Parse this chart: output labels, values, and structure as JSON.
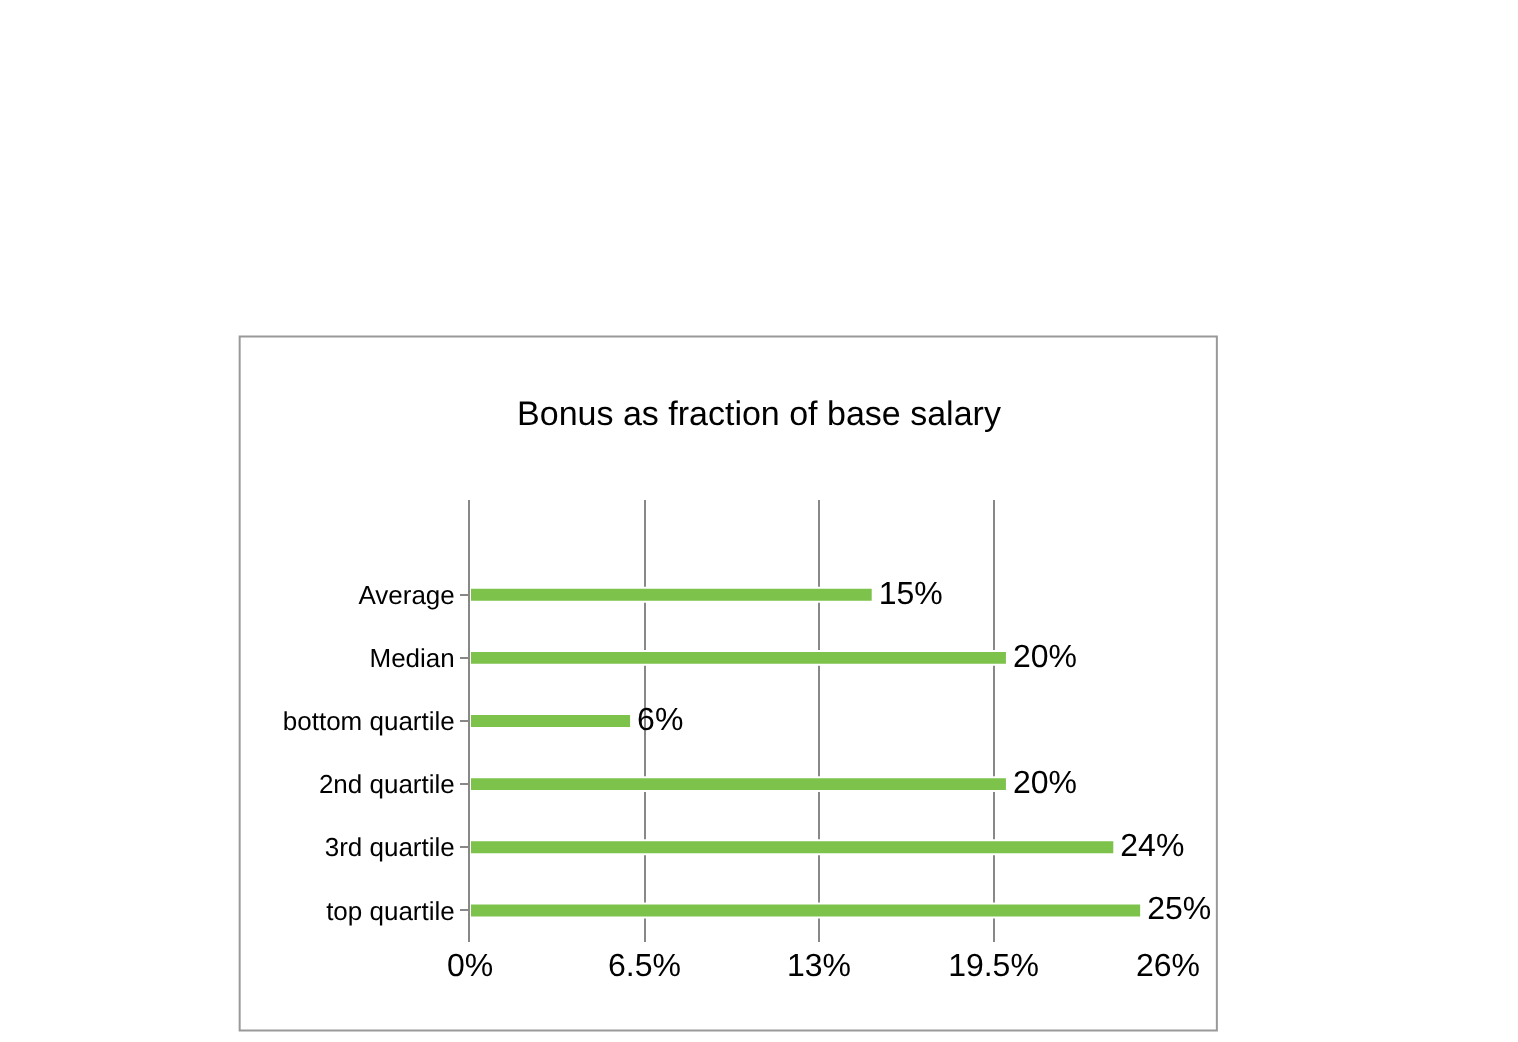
{
  "chart_data": {
    "type": "bar",
    "orientation": "horizontal",
    "title": "Bonus as fraction of base salary",
    "categories": [
      null,
      "Average",
      "Median",
      "bottom quartile",
      "2nd quartile",
      "3rd quartile",
      "top quartile"
    ],
    "series": [
      {
        "color": "#7dc24b",
        "values": [
          null,
          15,
          20,
          6,
          20,
          24,
          25
        ],
        "value_labels": [
          null,
          "15%",
          "20%",
          "6%",
          "20%",
          "24%",
          "25%"
        ]
      }
    ],
    "xlim": [
      0,
      26
    ],
    "xticks": [
      {
        "value": 0,
        "label": "0%"
      },
      {
        "value": 6.5,
        "label": "6.5%"
      },
      {
        "value": 13,
        "label": "13%"
      },
      {
        "value": 19.5,
        "label": "19.5%"
      },
      {
        "value": 26,
        "label": "26%"
      }
    ],
    "grid": "x"
  }
}
